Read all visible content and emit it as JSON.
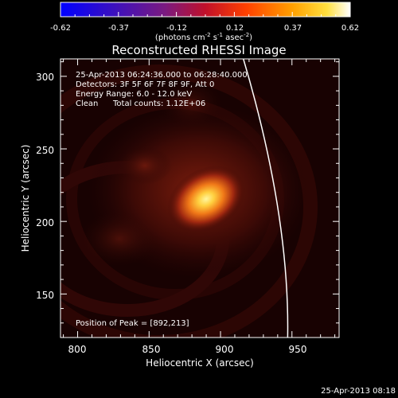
{
  "chart_data": {
    "type": "heatmap",
    "title": "Reconstructed RHESSI Image",
    "xlabel": "Heliocentric X (arcsec)",
    "ylabel": "Heliocentric Y (arcsec)",
    "colorbar": {
      "ticks": [
        "-0.62",
        "-0.37",
        "-0.12",
        "0.12",
        "0.37",
        "0.62"
      ],
      "label_prefix": "(photons cm",
      "label_exp1": "-2",
      "label_mid": " s",
      "label_exp2": "-1",
      "label_mid2": " asec",
      "label_exp3": "-2",
      "label_suffix": ")",
      "range": [
        -0.62,
        0.62
      ]
    },
    "annotations": {
      "time_range": "25-Apr-2013 06:24:36.000 to 06:28:40.000",
      "detectors": "Detectors: 3F 5F 6F 7F 8F 9F, Att 0",
      "energy": "Energy Range: 6.0 - 12.0 keV",
      "clean": "Clean",
      "total_counts": "Total counts: 1.12E+06",
      "peak": "Position of Peak = [892,213]"
    },
    "x_ticks": [
      "800",
      "850",
      "900",
      "950"
    ],
    "y_ticks": [
      "150",
      "200",
      "250",
      "300"
    ],
    "xlim": [
      788,
      983
    ],
    "ylim": [
      120,
      312
    ],
    "peak": [
      892,
      213
    ],
    "limb_curve_x": [
      916,
      940,
      947
    ],
    "limb_curve_y": [
      312,
      210,
      120
    ]
  },
  "timestamp": "25-Apr-2013 08:18"
}
